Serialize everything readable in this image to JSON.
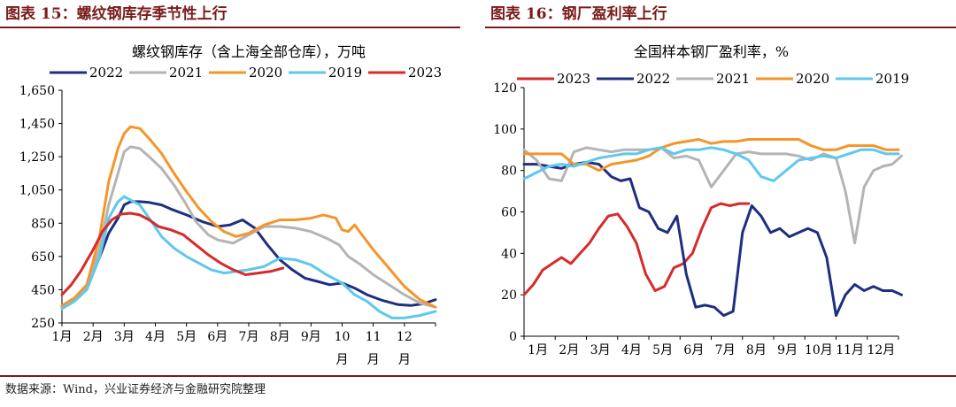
{
  "headers": {
    "left": "图表 15：螺纹钢库存季节性上行",
    "right": "图表 16：钢厂盈利率上行"
  },
  "source": "数据来源：Wind，兴业证券经济与金融研究院整理",
  "chart_data": [
    {
      "type": "line",
      "title": "螺纹钢库存（含上海全部仓库），万吨",
      "x_labels": [
        "1月",
        "2月",
        "3月",
        "4月",
        "5月",
        "6月",
        "7月",
        "8月",
        "9月",
        "10月",
        "11月",
        "12月"
      ],
      "ylim": [
        250,
        1650
      ],
      "yticks": [
        "1,650",
        "1,450",
        "1,250",
        "1,050",
        "850",
        "650",
        "450",
        "250"
      ],
      "ytick_values": [
        1650,
        1450,
        1250,
        1050,
        850,
        650,
        450,
        250
      ],
      "legend": [
        "2022",
        "2021",
        "2020",
        "2019",
        "2023"
      ],
      "series": [
        {
          "name": "2022",
          "color": "#1f2f80",
          "x": [
            1.0,
            1.4,
            1.8,
            2.2,
            2.5,
            2.8,
            3.0,
            3.2,
            3.5,
            3.8,
            4.2,
            4.5,
            5.0,
            5.5,
            6.0,
            6.4,
            6.8,
            7.2,
            7.6,
            8.0,
            8.4,
            8.8,
            9.2,
            9.6,
            10.0,
            10.4,
            10.8,
            11.3,
            11.8,
            12.2,
            12.6,
            13.0
          ],
          "y": [
            350,
            390,
            460,
            640,
            790,
            880,
            960,
            980,
            980,
            975,
            960,
            935,
            900,
            860,
            830,
            840,
            870,
            820,
            720,
            630,
            570,
            520,
            500,
            480,
            490,
            460,
            420,
            385,
            360,
            355,
            365,
            390
          ]
        },
        {
          "name": "2021",
          "color": "#b4b4b4",
          "x": [
            1.0,
            1.4,
            1.8,
            2.2,
            2.5,
            2.8,
            3.0,
            3.2,
            3.5,
            3.8,
            4.2,
            4.6,
            5.0,
            5.3,
            5.7,
            6.0,
            6.5,
            7.0,
            7.5,
            8.0,
            8.5,
            9.0,
            9.5,
            9.9,
            10.2,
            10.6,
            11.0,
            11.5,
            12.0,
            12.5,
            13.0
          ],
          "y": [
            345,
            390,
            470,
            690,
            960,
            1150,
            1280,
            1310,
            1300,
            1250,
            1180,
            1080,
            960,
            860,
            780,
            750,
            730,
            780,
            830,
            830,
            820,
            800,
            760,
            720,
            650,
            600,
            540,
            480,
            420,
            370,
            345
          ]
        },
        {
          "name": "2020",
          "color": "#f4952a",
          "x": [
            1.0,
            1.4,
            1.8,
            2.2,
            2.5,
            2.8,
            3.0,
            3.2,
            3.5,
            3.8,
            4.2,
            4.6,
            5.0,
            5.4,
            5.8,
            6.2,
            6.6,
            7.0,
            7.5,
            8.0,
            8.5,
            9.0,
            9.4,
            9.8,
            10.0,
            10.2,
            10.4,
            10.6,
            11.0,
            11.5,
            12.0,
            12.5,
            13.0
          ],
          "y": [
            355,
            400,
            480,
            760,
            1100,
            1300,
            1390,
            1430,
            1420,
            1360,
            1270,
            1150,
            1040,
            940,
            860,
            800,
            770,
            790,
            840,
            870,
            870,
            880,
            900,
            880,
            810,
            800,
            840,
            790,
            690,
            580,
            470,
            390,
            345
          ]
        },
        {
          "name": "2019",
          "color": "#5ec8ee",
          "x": [
            1.0,
            1.4,
            1.8,
            2.2,
            2.5,
            2.8,
            3.0,
            3.2,
            3.5,
            3.8,
            4.2,
            4.6,
            5.0,
            5.4,
            5.8,
            6.2,
            6.6,
            7.0,
            7.5,
            8.0,
            8.5,
            9.0,
            9.5,
            10.0,
            10.4,
            10.8,
            11.2,
            11.6,
            12.0,
            12.5,
            13.0
          ],
          "y": [
            335,
            380,
            450,
            640,
            880,
            980,
            1010,
            990,
            960,
            880,
            770,
            700,
            650,
            610,
            570,
            550,
            560,
            570,
            590,
            640,
            630,
            600,
            540,
            490,
            420,
            380,
            320,
            280,
            280,
            295,
            320
          ]
        },
        {
          "name": "2023",
          "color": "#d52b2b",
          "x": [
            1.0,
            1.3,
            1.6,
            2.0,
            2.3,
            2.6,
            2.9,
            3.2,
            3.5,
            3.8,
            4.1,
            4.5,
            4.9,
            5.3,
            5.7,
            6.1,
            6.5,
            6.9,
            7.3,
            7.7,
            8.1
          ],
          "y": [
            420,
            480,
            560,
            690,
            800,
            870,
            905,
            910,
            900,
            870,
            830,
            810,
            780,
            720,
            660,
            610,
            570,
            540,
            550,
            560,
            580
          ]
        }
      ]
    },
    {
      "type": "line",
      "title": "全国样本钢厂盈利率，%",
      "x_labels": [
        "1月",
        "2月",
        "3月",
        "4月",
        "5月",
        "6月",
        "7月",
        "8月",
        "9月",
        "10月",
        "11月",
        "12月"
      ],
      "ylim": [
        0,
        120
      ],
      "yticks": [
        "120",
        "100",
        "80",
        "60",
        "40",
        "20",
        "0"
      ],
      "ytick_values": [
        120,
        100,
        80,
        60,
        40,
        20,
        0
      ],
      "legend": [
        "2023",
        "2022",
        "2021",
        "2020",
        "2019"
      ],
      "series": [
        {
          "name": "2023",
          "color": "#d52b2b",
          "x": [
            1.0,
            1.3,
            1.6,
            1.9,
            2.2,
            2.5,
            2.8,
            3.1,
            3.4,
            3.7,
            4.0,
            4.3,
            4.6,
            4.9,
            5.2,
            5.5,
            5.8,
            6.1,
            6.4,
            6.7,
            7.0,
            7.3,
            7.6,
            7.9,
            8.2
          ],
          "y": [
            20,
            25,
            32,
            35,
            38,
            35,
            40,
            45,
            52,
            58,
            59,
            53,
            45,
            30,
            22,
            24,
            33,
            35,
            40,
            52,
            62,
            64,
            63,
            64,
            64
          ]
        },
        {
          "name": "2022",
          "color": "#1f2f80",
          "x": [
            1.0,
            1.4,
            1.8,
            2.2,
            2.6,
            3.0,
            3.4,
            3.8,
            4.1,
            4.4,
            4.7,
            5.0,
            5.3,
            5.6,
            5.9,
            6.2,
            6.5,
            6.8,
            7.1,
            7.4,
            7.7,
            8.0,
            8.3,
            8.6,
            8.9,
            9.2,
            9.5,
            9.8,
            10.1,
            10.4,
            10.7,
            11.0,
            11.3,
            11.6,
            11.9,
            12.2,
            12.5,
            12.8,
            13.1
          ],
          "y": [
            83,
            83,
            82,
            81,
            83,
            84,
            83,
            77,
            75,
            76,
            62,
            60,
            52,
            50,
            58,
            30,
            14,
            15,
            14,
            10,
            12,
            50,
            63,
            58,
            50,
            52,
            48,
            50,
            52,
            50,
            38,
            10,
            20,
            25,
            22,
            24,
            22,
            22,
            20
          ]
        },
        {
          "name": "2021",
          "color": "#b4b4b4",
          "x": [
            1.0,
            1.4,
            1.8,
            2.2,
            2.6,
            3.0,
            3.4,
            3.8,
            4.2,
            4.6,
            5.0,
            5.4,
            5.8,
            6.2,
            6.6,
            7.0,
            7.4,
            7.8,
            8.2,
            8.6,
            9.0,
            9.4,
            9.8,
            10.2,
            10.6,
            11.0,
            11.3,
            11.6,
            11.9,
            12.2,
            12.5,
            12.8,
            13.1
          ],
          "y": [
            90,
            85,
            76,
            75,
            89,
            91,
            90,
            89,
            90,
            90,
            90,
            91,
            86,
            87,
            85,
            72,
            80,
            88,
            89,
            88,
            88,
            88,
            87,
            85,
            88,
            86,
            70,
            45,
            72,
            80,
            82,
            83,
            87
          ]
        },
        {
          "name": "2020",
          "color": "#f4952a",
          "x": [
            1.0,
            1.4,
            1.8,
            2.2,
            2.6,
            3.0,
            3.4,
            3.8,
            4.2,
            4.6,
            5.0,
            5.4,
            5.8,
            6.2,
            6.6,
            7.0,
            7.4,
            7.8,
            8.2,
            8.6,
            9.0,
            9.4,
            9.8,
            10.2,
            10.6,
            11.0,
            11.4,
            11.8,
            12.2,
            12.6,
            13.0
          ],
          "y": [
            88,
            88,
            88,
            88,
            83,
            83,
            80,
            83,
            84,
            85,
            87,
            91,
            93,
            94,
            95,
            93,
            94,
            94,
            95,
            95,
            95,
            95,
            95,
            92,
            90,
            90,
            92,
            92,
            92,
            90,
            90
          ]
        },
        {
          "name": "2019",
          "color": "#5ec8ee",
          "x": [
            1.0,
            1.4,
            1.8,
            2.2,
            2.6,
            3.0,
            3.4,
            3.8,
            4.2,
            4.6,
            5.0,
            5.4,
            5.8,
            6.2,
            6.6,
            7.0,
            7.4,
            7.8,
            8.2,
            8.6,
            9.0,
            9.4,
            9.8,
            10.2,
            10.6,
            11.0,
            11.4,
            11.8,
            12.2,
            12.6,
            13.0
          ],
          "y": [
            76,
            79,
            82,
            83,
            82,
            84,
            86,
            87,
            88,
            88,
            90,
            91,
            88,
            90,
            90,
            91,
            90,
            88,
            85,
            77,
            75,
            80,
            85,
            86,
            87,
            86,
            88,
            90,
            90,
            88,
            88
          ]
        }
      ]
    }
  ]
}
